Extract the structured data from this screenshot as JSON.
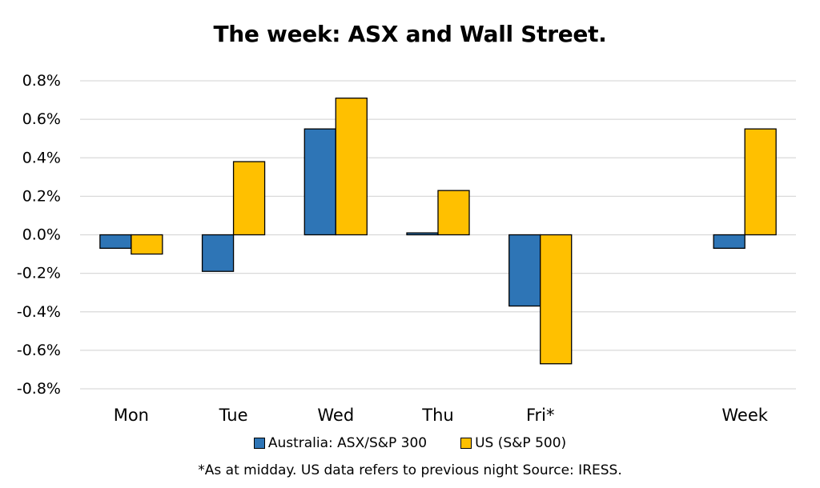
{
  "chart_data": {
    "type": "bar",
    "title": "The week:  ASX and Wall Street.",
    "categories": [
      "Mon",
      "Tue",
      "Wed",
      "Thu",
      "Fri*",
      "",
      "Week"
    ],
    "series": [
      {
        "name": "Australia: ASX/S&P 300",
        "color": "#2E75B6",
        "values": [
          -0.0007,
          -0.0019,
          0.0055,
          0.0001,
          -0.0037,
          null,
          -0.0007
        ]
      },
      {
        "name": "US (S&P 500)",
        "color": "#FFC000",
        "values": [
          -0.001,
          0.0038,
          0.0071,
          0.0023,
          -0.0067,
          null,
          0.0055
        ]
      }
    ],
    "ylim": [
      -0.008,
      0.008
    ],
    "yticks": [
      "0.8%",
      "0.6%",
      "0.4%",
      "0.2%",
      "0.0%",
      "-0.2%",
      "-0.4%",
      "-0.6%",
      "-0.8%"
    ],
    "ytick_values": [
      0.008,
      0.006,
      0.004,
      0.002,
      0.0,
      -0.002,
      -0.004,
      -0.006,
      -0.008
    ],
    "grid": true,
    "legend_position": "bottom"
  },
  "footnote": "*As at midday. US data refers to previous night  Source:  IRESS."
}
